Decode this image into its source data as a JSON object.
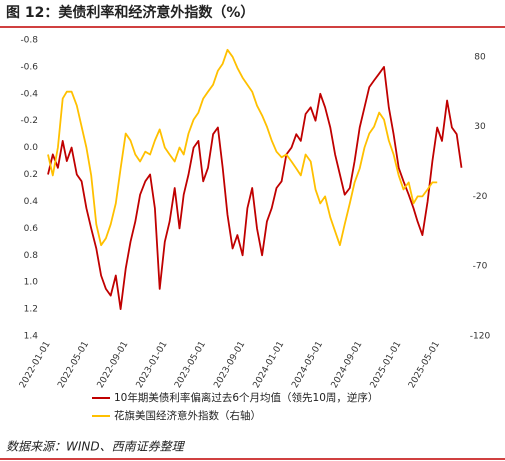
{
  "chart_data": {
    "type": "line",
    "title": "图 12：美债利率和经济意外指数（%）",
    "source": "数据来源：WIND、西南证券整理",
    "x": [
      "2022-01-01",
      "2022-01-16",
      "2022-02-01",
      "2022-02-16",
      "2022-03-01",
      "2022-03-16",
      "2022-04-01",
      "2022-04-16",
      "2022-05-01",
      "2022-05-16",
      "2022-06-01",
      "2022-06-16",
      "2022-07-01",
      "2022-07-16",
      "2022-08-01",
      "2022-08-16",
      "2022-09-01",
      "2022-09-16",
      "2022-10-01",
      "2022-10-16",
      "2022-11-01",
      "2022-11-16",
      "2022-12-01",
      "2022-12-16",
      "2023-01-01",
      "2023-01-16",
      "2023-02-01",
      "2023-02-16",
      "2023-03-01",
      "2023-03-16",
      "2023-04-01",
      "2023-04-16",
      "2023-05-01",
      "2023-05-16",
      "2023-06-01",
      "2023-06-16",
      "2023-07-01",
      "2023-07-16",
      "2023-08-01",
      "2023-08-16",
      "2023-09-01",
      "2023-09-16",
      "2023-10-01",
      "2023-10-16",
      "2023-11-01",
      "2023-11-16",
      "2023-12-01",
      "2023-12-16",
      "2024-01-01",
      "2024-01-16",
      "2024-02-01",
      "2024-02-16",
      "2024-03-01",
      "2024-03-16",
      "2024-04-01",
      "2024-04-16",
      "2024-05-01",
      "2024-05-16",
      "2024-06-01",
      "2024-06-16",
      "2024-07-01",
      "2024-07-16",
      "2024-08-01",
      "2024-08-16",
      "2024-09-01",
      "2024-09-16",
      "2024-10-01",
      "2024-10-16",
      "2024-11-01",
      "2024-11-16",
      "2024-12-01",
      "2024-12-16",
      "2025-01-01",
      "2025-01-16",
      "2025-02-01",
      "2025-02-16",
      "2025-03-01",
      "2025-03-16",
      "2025-04-01",
      "2025-04-16",
      "2025-05-01",
      "2025-05-16",
      "2025-06-01",
      "2025-06-16",
      "2025-07-01",
      "2025-07-16"
    ],
    "xlim": [
      "2021-12-29",
      "2025-07-27"
    ],
    "xticks": [
      "2022-01-01",
      "2022-05-01",
      "2022-09-01",
      "2023-01-01",
      "2023-05-01",
      "2023-09-01",
      "2024-01-01",
      "2024-05-01",
      "2024-09-01",
      "2025-01-01",
      "2025-05-01"
    ],
    "ylim": [
      -0.8,
      1.4
    ],
    "y_reversed": true,
    "yticks": [
      -0.8,
      -0.6,
      -0.4,
      -0.2,
      {
        "value": 0,
        "label": "0.0"
      },
      0.2,
      0.4,
      0.6,
      0.8,
      {
        "value": 1,
        "label": "1.0"
      },
      1.2,
      1.4
    ],
    "y2lim": [
      -120,
      92
    ],
    "y2ticks": [
      80,
      30,
      -20,
      -70,
      -120
    ],
    "series": [
      {
        "name": "10年期美债利率偏离过去6个月均值（领先10周，逆序）",
        "color": "#c00000",
        "values": [
          0.2,
          0.05,
          0.15,
          -0.05,
          0.1,
          0.0,
          0.2,
          0.25,
          0.45,
          0.6,
          0.75,
          0.95,
          1.05,
          1.1,
          0.95,
          1.2,
          0.9,
          0.7,
          0.55,
          0.35,
          0.25,
          0.2,
          0.45,
          1.05,
          0.7,
          0.55,
          0.3,
          0.6,
          0.35,
          0.2,
          0.0,
          -0.05,
          0.25,
          0.15,
          -0.1,
          -0.15,
          0.15,
          0.5,
          0.75,
          0.65,
          0.8,
          0.45,
          0.3,
          0.6,
          0.8,
          0.55,
          0.45,
          0.3,
          0.25,
          0.05,
          0.0,
          -0.1,
          -0.05,
          -0.25,
          -0.3,
          -0.2,
          -0.4,
          -0.3,
          -0.15,
          0.05,
          0.2,
          0.35,
          0.3,
          0.1,
          -0.15,
          -0.3,
          -0.45,
          -0.5,
          -0.55,
          -0.6,
          -0.3,
          -0.1,
          0.15,
          0.25,
          0.35,
          0.45,
          0.55,
          0.65,
          0.4,
          0.1,
          -0.15,
          -0.05,
          -0.35,
          -0.15,
          -0.1,
          0.15
        ]
      },
      {
        "name": "花旗美国经济意外指数（右轴）",
        "color": "#ffc000",
        "axis": "y2",
        "values": [
          10,
          -5,
          15,
          50,
          55,
          55,
          45,
          30,
          15,
          -5,
          -40,
          -55,
          -50,
          -40,
          -25,
          0,
          25,
          20,
          10,
          5,
          12,
          10,
          20,
          28,
          15,
          10,
          5,
          15,
          10,
          25,
          35,
          40,
          50,
          55,
          60,
          70,
          75,
          85,
          80,
          72,
          65,
          60,
          55,
          45,
          38,
          30,
          20,
          12,
          8,
          10,
          5,
          0,
          -5,
          10,
          5,
          -15,
          -25,
          -20,
          -35,
          -45,
          -55,
          -40,
          -25,
          -10,
          0,
          15,
          25,
          30,
          40,
          35,
          20,
          10,
          -5,
          -15,
          -10,
          -25,
          -20,
          -20,
          -15,
          -10,
          -10,
          null,
          null,
          null,
          null,
          null
        ]
      }
    ]
  }
}
